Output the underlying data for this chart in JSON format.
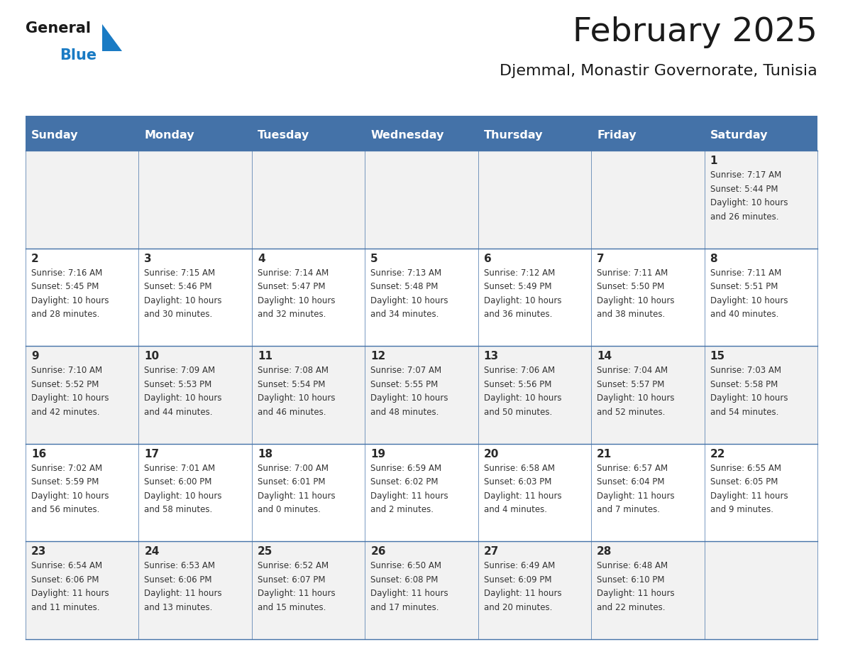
{
  "title": "February 2025",
  "subtitle": "Djemmal, Monastir Governorate, Tunisia",
  "header_bg": "#4472A8",
  "header_text": "#FFFFFF",
  "cell_bg_odd": "#F2F2F2",
  "cell_bg_even": "#FFFFFF",
  "title_color": "#1a1a1a",
  "subtitle_color": "#1a1a1a",
  "number_color": "#2a2a2a",
  "info_color": "#333333",
  "line_color": "#4472A8",
  "logo_general_color": "#1a1a1a",
  "logo_blue_color": "#1a7BC4",
  "logo_triangle_color": "#1a7BC4",
  "day_headers": [
    "Sunday",
    "Monday",
    "Tuesday",
    "Wednesday",
    "Thursday",
    "Friday",
    "Saturday"
  ],
  "calendar": [
    [
      {
        "day": 0,
        "info": ""
      },
      {
        "day": 0,
        "info": ""
      },
      {
        "day": 0,
        "info": ""
      },
      {
        "day": 0,
        "info": ""
      },
      {
        "day": 0,
        "info": ""
      },
      {
        "day": 0,
        "info": ""
      },
      {
        "day": 1,
        "info": "Sunrise: 7:17 AM\nSunset: 5:44 PM\nDaylight: 10 hours\nand 26 minutes."
      }
    ],
    [
      {
        "day": 2,
        "info": "Sunrise: 7:16 AM\nSunset: 5:45 PM\nDaylight: 10 hours\nand 28 minutes."
      },
      {
        "day": 3,
        "info": "Sunrise: 7:15 AM\nSunset: 5:46 PM\nDaylight: 10 hours\nand 30 minutes."
      },
      {
        "day": 4,
        "info": "Sunrise: 7:14 AM\nSunset: 5:47 PM\nDaylight: 10 hours\nand 32 minutes."
      },
      {
        "day": 5,
        "info": "Sunrise: 7:13 AM\nSunset: 5:48 PM\nDaylight: 10 hours\nand 34 minutes."
      },
      {
        "day": 6,
        "info": "Sunrise: 7:12 AM\nSunset: 5:49 PM\nDaylight: 10 hours\nand 36 minutes."
      },
      {
        "day": 7,
        "info": "Sunrise: 7:11 AM\nSunset: 5:50 PM\nDaylight: 10 hours\nand 38 minutes."
      },
      {
        "day": 8,
        "info": "Sunrise: 7:11 AM\nSunset: 5:51 PM\nDaylight: 10 hours\nand 40 minutes."
      }
    ],
    [
      {
        "day": 9,
        "info": "Sunrise: 7:10 AM\nSunset: 5:52 PM\nDaylight: 10 hours\nand 42 minutes."
      },
      {
        "day": 10,
        "info": "Sunrise: 7:09 AM\nSunset: 5:53 PM\nDaylight: 10 hours\nand 44 minutes."
      },
      {
        "day": 11,
        "info": "Sunrise: 7:08 AM\nSunset: 5:54 PM\nDaylight: 10 hours\nand 46 minutes."
      },
      {
        "day": 12,
        "info": "Sunrise: 7:07 AM\nSunset: 5:55 PM\nDaylight: 10 hours\nand 48 minutes."
      },
      {
        "day": 13,
        "info": "Sunrise: 7:06 AM\nSunset: 5:56 PM\nDaylight: 10 hours\nand 50 minutes."
      },
      {
        "day": 14,
        "info": "Sunrise: 7:04 AM\nSunset: 5:57 PM\nDaylight: 10 hours\nand 52 minutes."
      },
      {
        "day": 15,
        "info": "Sunrise: 7:03 AM\nSunset: 5:58 PM\nDaylight: 10 hours\nand 54 minutes."
      }
    ],
    [
      {
        "day": 16,
        "info": "Sunrise: 7:02 AM\nSunset: 5:59 PM\nDaylight: 10 hours\nand 56 minutes."
      },
      {
        "day": 17,
        "info": "Sunrise: 7:01 AM\nSunset: 6:00 PM\nDaylight: 10 hours\nand 58 minutes."
      },
      {
        "day": 18,
        "info": "Sunrise: 7:00 AM\nSunset: 6:01 PM\nDaylight: 11 hours\nand 0 minutes."
      },
      {
        "day": 19,
        "info": "Sunrise: 6:59 AM\nSunset: 6:02 PM\nDaylight: 11 hours\nand 2 minutes."
      },
      {
        "day": 20,
        "info": "Sunrise: 6:58 AM\nSunset: 6:03 PM\nDaylight: 11 hours\nand 4 minutes."
      },
      {
        "day": 21,
        "info": "Sunrise: 6:57 AM\nSunset: 6:04 PM\nDaylight: 11 hours\nand 7 minutes."
      },
      {
        "day": 22,
        "info": "Sunrise: 6:55 AM\nSunset: 6:05 PM\nDaylight: 11 hours\nand 9 minutes."
      }
    ],
    [
      {
        "day": 23,
        "info": "Sunrise: 6:54 AM\nSunset: 6:06 PM\nDaylight: 11 hours\nand 11 minutes."
      },
      {
        "day": 24,
        "info": "Sunrise: 6:53 AM\nSunset: 6:06 PM\nDaylight: 11 hours\nand 13 minutes."
      },
      {
        "day": 25,
        "info": "Sunrise: 6:52 AM\nSunset: 6:07 PM\nDaylight: 11 hours\nand 15 minutes."
      },
      {
        "day": 26,
        "info": "Sunrise: 6:50 AM\nSunset: 6:08 PM\nDaylight: 11 hours\nand 17 minutes."
      },
      {
        "day": 27,
        "info": "Sunrise: 6:49 AM\nSunset: 6:09 PM\nDaylight: 11 hours\nand 20 minutes."
      },
      {
        "day": 28,
        "info": "Sunrise: 6:48 AM\nSunset: 6:10 PM\nDaylight: 11 hours\nand 22 minutes."
      },
      {
        "day": 0,
        "info": ""
      }
    ]
  ]
}
